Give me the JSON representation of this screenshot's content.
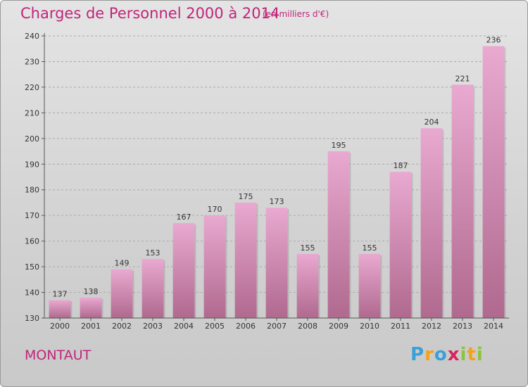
{
  "header": {
    "title": "Charges de Personnel 2000 à 2014",
    "subtitle": "(en milliers d'€)"
  },
  "commune": "MONTAUT",
  "logo": {
    "letters": [
      "P",
      "r",
      "o",
      "x",
      "i",
      "t",
      "i"
    ],
    "colors": [
      "#3aa0d8",
      "#f2a21b",
      "#3aa0d8",
      "#d6245c",
      "#8bc43f",
      "#f2a21b",
      "#8bc43f"
    ]
  },
  "colors": {
    "bar_top": "#e9a9d0",
    "bar_bottom": "#b0698f",
    "accent": "#c0257a",
    "axis": "#555555",
    "grid": "#aaaaaa"
  },
  "chart_data": {
    "type": "bar",
    "categories": [
      "2000",
      "2001",
      "2002",
      "2003",
      "2004",
      "2005",
      "2006",
      "2007",
      "2008",
      "2009",
      "2010",
      "2011",
      "2012",
      "2013",
      "2014"
    ],
    "values": [
      137,
      138,
      149,
      153,
      167,
      170,
      175,
      173,
      155,
      195,
      155,
      187,
      204,
      221,
      236
    ],
    "yticks": [
      130,
      140,
      150,
      160,
      170,
      180,
      190,
      200,
      210,
      220,
      230,
      240
    ],
    "ylim": [
      130,
      240
    ],
    "grid": true,
    "legend": "none"
  }
}
